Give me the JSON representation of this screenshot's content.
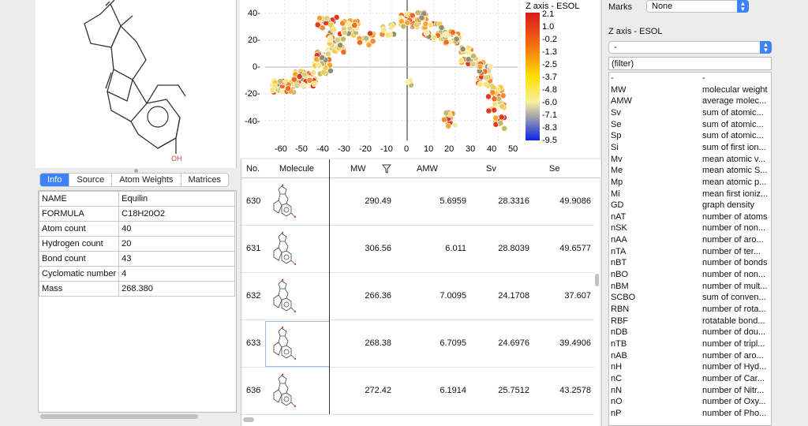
{
  "molecule": {
    "oh_label": "OH"
  },
  "tabs": [
    "Info",
    "Source",
    "Atom Weights",
    "Matrices"
  ],
  "info": [
    {
      "key": "NAME",
      "value": "Equilin"
    },
    {
      "key": "FORMULA",
      "value": "C18H20O2"
    },
    {
      "key": "Atom count",
      "value": "40"
    },
    {
      "key": "Hydrogen count",
      "value": "20"
    },
    {
      "key": "Bond count",
      "value": "43"
    },
    {
      "key": "Cyclomatic number",
      "value": "4"
    },
    {
      "key": "Mass",
      "value": "268.380"
    }
  ],
  "plot": {
    "z_title": "Z axis - ESOL",
    "x_ticks": [
      "-60",
      "-50",
      "-40",
      "-30",
      "-20",
      "-10",
      "0",
      "10",
      "20",
      "30",
      "40",
      "50"
    ],
    "y_ticks": [
      "40-",
      "20-",
      "0-",
      "-20-",
      "-40-"
    ],
    "colorbar_ticks": [
      "2.1",
      "1.0",
      "-0.2",
      "-1.3",
      "-2.5",
      "-3.7",
      "-4.8",
      "-6.0",
      "-7.1",
      "-8.3",
      "-9.5"
    ]
  },
  "grid": {
    "headers": {
      "no": "No.",
      "molecule": "Molecule",
      "mw": "MW",
      "amw": "AMW",
      "sv": "Sv",
      "se": "Se"
    },
    "rows": [
      {
        "no": "630",
        "mw": "290.49",
        "amw": "5.6959",
        "sv": "28.3316",
        "se": "49.9086"
      },
      {
        "no": "631",
        "mw": "306.56",
        "amw": "6.011",
        "sv": "28.8039",
        "se": "49.6577"
      },
      {
        "no": "632",
        "mw": "266.36",
        "amw": "7.0095",
        "sv": "24.1708",
        "se": "37.607"
      },
      {
        "no": "633",
        "mw": "268.38",
        "amw": "6.7095",
        "sv": "24.6976",
        "se": "39.4906"
      },
      {
        "no": "636",
        "mw": "272.42",
        "amw": "6.1914",
        "sv": "25.7512",
        "se": "43.2578"
      }
    ]
  },
  "right": {
    "marks_label": "Marks",
    "marks_value": "None",
    "z_axis_label": "Z axis - ESOL",
    "z_select_value": "-",
    "filter_placeholder": "(filter)",
    "descriptors": [
      {
        "k": "-",
        "v": "-"
      },
      {
        "k": "MW",
        "v": "molecular weight"
      },
      {
        "k": "AMW",
        "v": "average molec..."
      },
      {
        "k": "Sv",
        "v": "sum of atomic..."
      },
      {
        "k": "Se",
        "v": "sum of atomic..."
      },
      {
        "k": "Sp",
        "v": "sum of atomic..."
      },
      {
        "k": "Si",
        "v": "sum of first ion..."
      },
      {
        "k": "Mv",
        "v": "mean atomic v..."
      },
      {
        "k": "Me",
        "v": "mean atomic S..."
      },
      {
        "k": "Mp",
        "v": "mean atomic p..."
      },
      {
        "k": "Mi",
        "v": "mean first ioniz..."
      },
      {
        "k": "GD",
        "v": "graph density"
      },
      {
        "k": "nAT",
        "v": "number of atoms"
      },
      {
        "k": "nSK",
        "v": "number of non..."
      },
      {
        "k": "nAA",
        "v": "number of aro..."
      },
      {
        "k": "nTA",
        "v": "number of ter..."
      },
      {
        "k": "nBT",
        "v": "number of bonds"
      },
      {
        "k": "nBO",
        "v": "number of non..."
      },
      {
        "k": "nBM",
        "v": "number of mult..."
      },
      {
        "k": "SCBO",
        "v": "sum of conven..."
      },
      {
        "k": "RBN",
        "v": "number of rota..."
      },
      {
        "k": "RBF",
        "v": "rotatable bond..."
      },
      {
        "k": "nDB",
        "v": "number of dou..."
      },
      {
        "k": "nTB",
        "v": "number of tripl..."
      },
      {
        "k": "nAB",
        "v": "number of aro..."
      },
      {
        "k": "nH",
        "v": "number of Hyd..."
      },
      {
        "k": "nC",
        "v": "number of Car..."
      },
      {
        "k": "nN",
        "v": "number of Nitr..."
      },
      {
        "k": "nO",
        "v": "number of Oxy..."
      },
      {
        "k": "nP",
        "v": "number of Pho..."
      }
    ]
  }
}
